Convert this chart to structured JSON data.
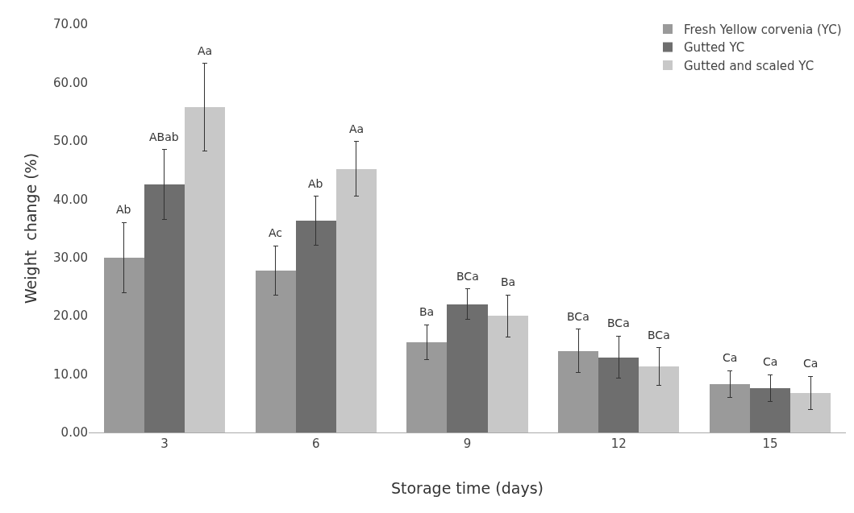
{
  "chart_data": {
    "type": "bar",
    "xlabel": "Storage time (days)",
    "ylabel": "Weight  change (%)",
    "categories": [
      "3",
      "6",
      "9",
      "12",
      "15"
    ],
    "series": [
      {
        "name": "Fresh Yellow corvenia (YC)",
        "color": "#9a9a9a",
        "values": [
          30.0,
          27.8,
          15.5,
          14.0,
          8.3
        ],
        "errors": [
          6.0,
          4.2,
          3.0,
          3.7,
          2.3
        ]
      },
      {
        "name": "Gutted YC",
        "color": "#6e6e6e",
        "values": [
          42.5,
          36.3,
          22.0,
          12.9,
          7.6
        ],
        "errors": [
          6.0,
          4.2,
          2.6,
          3.6,
          2.3
        ]
      },
      {
        "name": "Gutted and scaled YC",
        "color": "#c8c8c8",
        "values": [
          55.8,
          45.2,
          20.0,
          11.3,
          6.8
        ],
        "errors": [
          7.5,
          4.7,
          3.6,
          3.2,
          2.8
        ]
      }
    ],
    "ylim": [
      0,
      70
    ],
    "yticks": [
      {
        "value": 0,
        "label": "0.00"
      },
      {
        "value": 10,
        "label": "10.00"
      },
      {
        "value": 20,
        "label": "20.00"
      },
      {
        "value": 30,
        "label": "30.00"
      },
      {
        "value": 40,
        "label": "40.00"
      },
      {
        "value": 50,
        "label": "50.00"
      },
      {
        "value": 60,
        "label": "60.00"
      },
      {
        "value": 70,
        "label": "70.00"
      }
    ],
    "legend": "top right",
    "annotations": [
      "Ab",
      "ABab",
      "Aa",
      "Ac",
      "Ab",
      "Aa",
      "Ba",
      "BCa",
      "Ba",
      "BCa",
      "BCa",
      "BCa",
      "Ca",
      "Ca",
      "Ca"
    ]
  }
}
